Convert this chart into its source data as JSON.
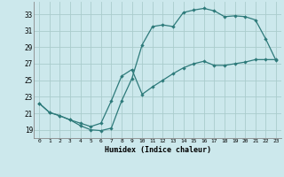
{
  "xlabel": "Humidex (Indice chaleur)",
  "bg_color": "#cce8ec",
  "grid_color": "#aacccc",
  "line_color": "#2d7a7a",
  "xlim": [
    -0.5,
    23.5
  ],
  "ylim": [
    18.0,
    34.5
  ],
  "xticks": [
    0,
    1,
    2,
    3,
    4,
    5,
    6,
    7,
    8,
    9,
    10,
    11,
    12,
    13,
    14,
    15,
    16,
    17,
    18,
    19,
    20,
    21,
    22,
    23
  ],
  "yticks": [
    19,
    21,
    23,
    25,
    27,
    29,
    31,
    33
  ],
  "line1_x": [
    0,
    1,
    2,
    3,
    4,
    5,
    6,
    7,
    8,
    9,
    10,
    11,
    12,
    13,
    14,
    15,
    16,
    17,
    18,
    19,
    20,
    21,
    22,
    23
  ],
  "line1_y": [
    22.2,
    21.1,
    20.7,
    20.2,
    19.5,
    19.0,
    18.9,
    19.2,
    22.5,
    25.2,
    29.3,
    31.5,
    31.7,
    31.5,
    33.2,
    33.5,
    33.7,
    33.4,
    32.7,
    32.8,
    32.7,
    32.3,
    30.0,
    27.4
  ],
  "line2_x": [
    0,
    1,
    2,
    3,
    4,
    5,
    6,
    7,
    8,
    9,
    10,
    11,
    12,
    13,
    14,
    15,
    16,
    17,
    18,
    19,
    20,
    21,
    22,
    23
  ],
  "line2_y": [
    22.2,
    21.1,
    20.7,
    20.2,
    19.8,
    19.4,
    19.8,
    22.5,
    25.5,
    26.3,
    23.3,
    24.2,
    25.0,
    25.8,
    26.5,
    27.0,
    27.3,
    26.8,
    26.8,
    27.0,
    27.2,
    27.5,
    27.5,
    27.5
  ]
}
